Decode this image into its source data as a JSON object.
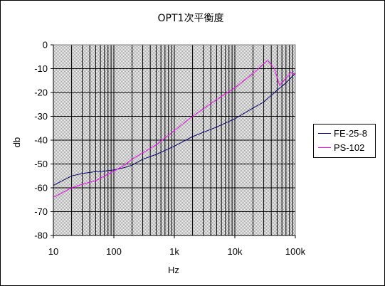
{
  "chart_data": {
    "type": "line",
    "title": "OPT1次平衡度",
    "xlabel": "Hz",
    "ylabel": "db",
    "x_scale": "log",
    "xlim": [
      10,
      100000
    ],
    "ylim": [
      -80,
      0
    ],
    "x_ticks": [
      {
        "value": 10,
        "label": "10"
      },
      {
        "value": 100,
        "label": "100"
      },
      {
        "value": 1000,
        "label": "1k"
      },
      {
        "value": 10000,
        "label": "10k"
      },
      {
        "value": 100000,
        "label": "100k"
      }
    ],
    "y_ticks": [
      0,
      -10,
      -20,
      -30,
      -40,
      -50,
      -60,
      -70,
      -80
    ],
    "grid": true,
    "legend_position": "right",
    "series": [
      {
        "name": "FE-25-8",
        "color": "#000080",
        "points": [
          [
            10,
            -59
          ],
          [
            20,
            -55
          ],
          [
            30,
            -54
          ],
          [
            50,
            -53.2
          ],
          [
            70,
            -53
          ],
          [
            100,
            -52.5
          ],
          [
            150,
            -51.5
          ],
          [
            200,
            -50.5
          ],
          [
            300,
            -48
          ],
          [
            500,
            -46
          ],
          [
            1000,
            -42.5
          ],
          [
            2000,
            -38.5
          ],
          [
            5000,
            -34.5
          ],
          [
            10000,
            -31
          ],
          [
            20000,
            -26.5
          ],
          [
            30000,
            -24
          ],
          [
            50000,
            -19
          ],
          [
            70000,
            -16
          ],
          [
            100000,
            -12
          ]
        ]
      },
      {
        "name": "PS-102",
        "color": "#ff00ff",
        "points": [
          [
            10,
            -64
          ],
          [
            20,
            -60
          ],
          [
            30,
            -58.5
          ],
          [
            50,
            -57
          ],
          [
            100,
            -53
          ],
          [
            150,
            -50.5
          ],
          [
            200,
            -48
          ],
          [
            500,
            -42
          ],
          [
            1000,
            -36
          ],
          [
            2000,
            -30
          ],
          [
            5000,
            -23
          ],
          [
            10000,
            -18
          ],
          [
            20000,
            -12
          ],
          [
            30000,
            -8
          ],
          [
            35000,
            -6.5
          ],
          [
            45000,
            -10
          ],
          [
            55000,
            -17
          ],
          [
            70000,
            -14
          ],
          [
            85000,
            -11.5
          ],
          [
            100000,
            -12.5
          ]
        ]
      }
    ]
  }
}
